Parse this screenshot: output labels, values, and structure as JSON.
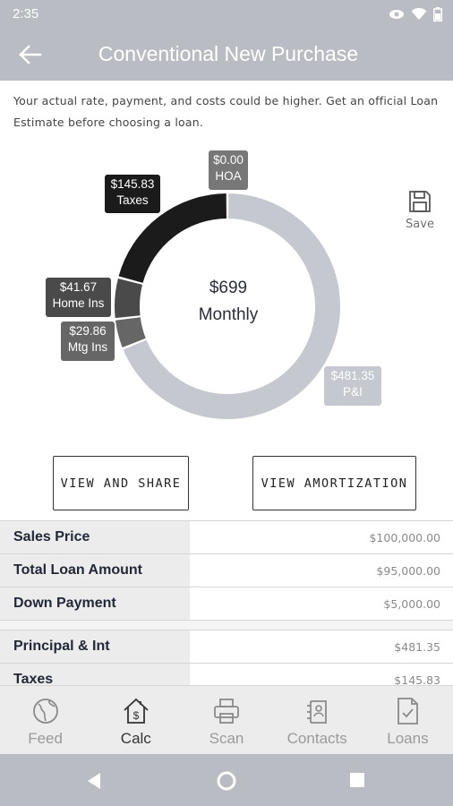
{
  "status_bar": {
    "time": "2:35"
  },
  "header": {
    "title": "Conventional New Purchase"
  },
  "disclaimer": "Your actual rate, payment, and costs could be higher. Get an official Loan Estimate before choosing a loan.",
  "summary": {
    "total": "$699",
    "period": "Monthly",
    "segments": [
      {
        "key": "pi",
        "amount": "$481.35",
        "label": "P&I",
        "value": 481.35,
        "color": "#c5c8ce"
      },
      {
        "key": "mtg",
        "amount": "$29.86",
        "label": "Mtg Ins",
        "value": 29.86,
        "color": "#666666"
      },
      {
        "key": "home",
        "amount": "$41.67",
        "label": "Home Ins",
        "value": 41.67,
        "color": "#4a4a4a"
      },
      {
        "key": "taxes",
        "amount": "$145.83",
        "label": "Taxes",
        "value": 145.83,
        "color": "#1b1b1b"
      },
      {
        "key": "hoa",
        "amount": "$0.00",
        "label": "HOA",
        "value": 0,
        "color": "#777777"
      }
    ]
  },
  "save": {
    "label": "Save"
  },
  "buttons": {
    "share": "VIEW AND SHARE",
    "amortization": "VIEW AMORTIZATION"
  },
  "loan_details": [
    {
      "label": "Sales Price",
      "value": "$100,000.00"
    },
    {
      "label": "Total Loan Amount",
      "value": "$95,000.00"
    },
    {
      "label": "Down Payment",
      "value": "$5,000.00"
    }
  ],
  "payment_details": [
    {
      "label": "Principal & Int",
      "value": "$481.35"
    },
    {
      "label": "Taxes",
      "value": "$145.83"
    }
  ],
  "nav": {
    "items": [
      {
        "label": "Feed",
        "icon": "globe-icon"
      },
      {
        "label": "Calc",
        "icon": "house-dollar-icon"
      },
      {
        "label": "Scan",
        "icon": "printer-icon"
      },
      {
        "label": "Contacts",
        "icon": "contacts-icon"
      },
      {
        "label": "Loans",
        "icon": "document-check-icon"
      }
    ],
    "active": "Calc"
  }
}
